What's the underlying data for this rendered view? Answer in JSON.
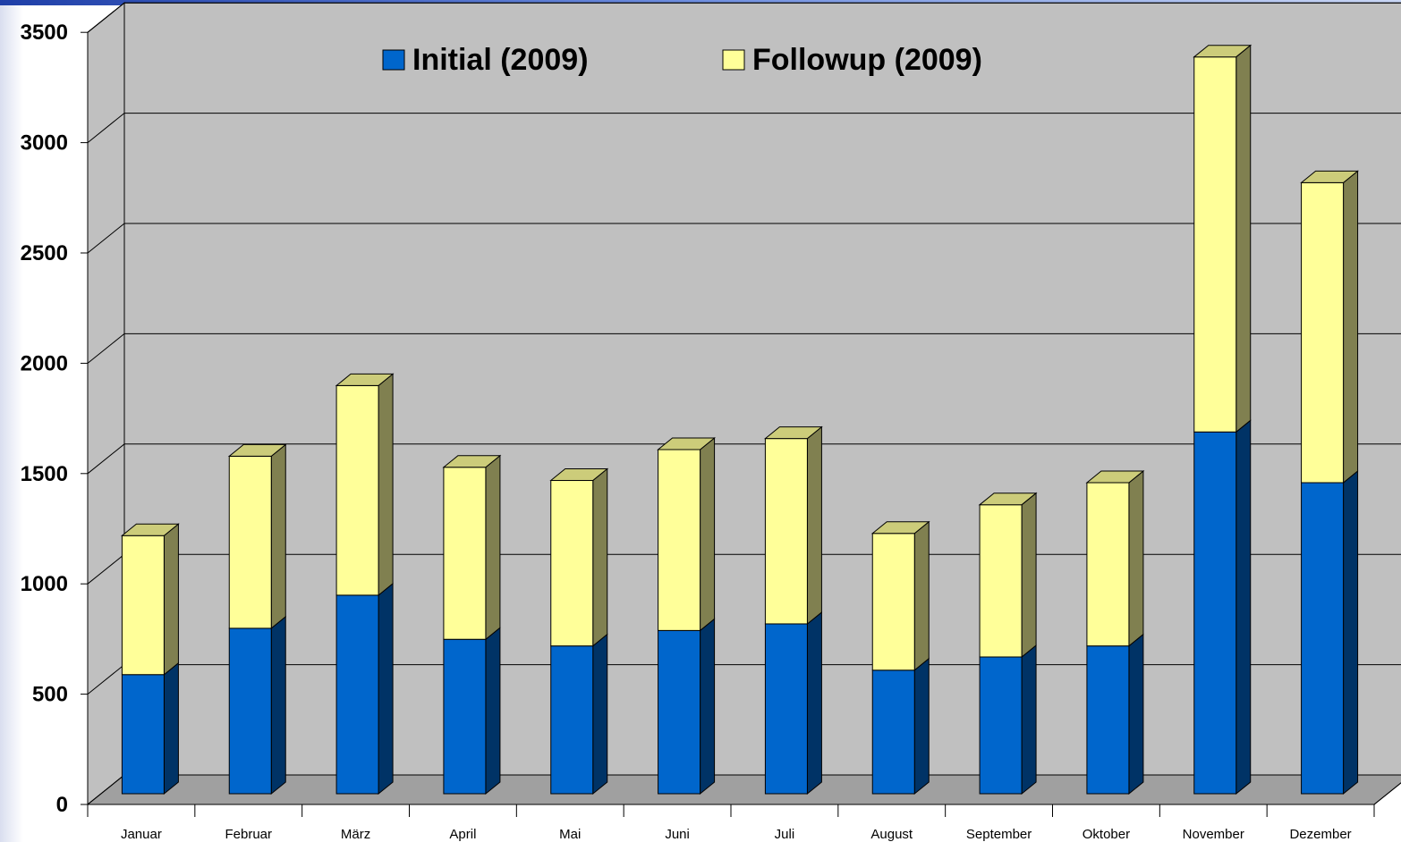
{
  "colors": {
    "initial_front": "#0066cc",
    "initial_side": "#003366",
    "initial_top": "#0052a3",
    "followup_front": "#ffff99",
    "followup_side": "#808050",
    "followup_top": "#cccc7a",
    "wall": "#c0c0c0",
    "floor": "#a0a0a0",
    "grid": "#000000"
  },
  "chart_data": {
    "type": "bar",
    "stacked": true,
    "three_d": true,
    "categories": [
      "Januar",
      "Februar",
      "März",
      "April",
      "Mai",
      "Juni",
      "Juli",
      "August",
      "September",
      "Oktober",
      "November",
      "Dezember"
    ],
    "series": [
      {
        "name": "Initial (2009)",
        "color": "#0066cc",
        "values": [
          540,
          750,
          900,
          700,
          670,
          740,
          770,
          560,
          620,
          670,
          1640,
          1410
        ]
      },
      {
        "name": "Followup (2009)",
        "color": "#ffff99",
        "values": [
          630,
          780,
          950,
          780,
          750,
          820,
          840,
          620,
          690,
          740,
          1700,
          1360
        ]
      }
    ],
    "yticks": [
      "0",
      "500",
      "1000",
      "1500",
      "2000",
      "2500",
      "3000",
      "3500"
    ],
    "ylim": [
      0,
      3500
    ],
    "grid": true,
    "legend_position": "top-center"
  }
}
